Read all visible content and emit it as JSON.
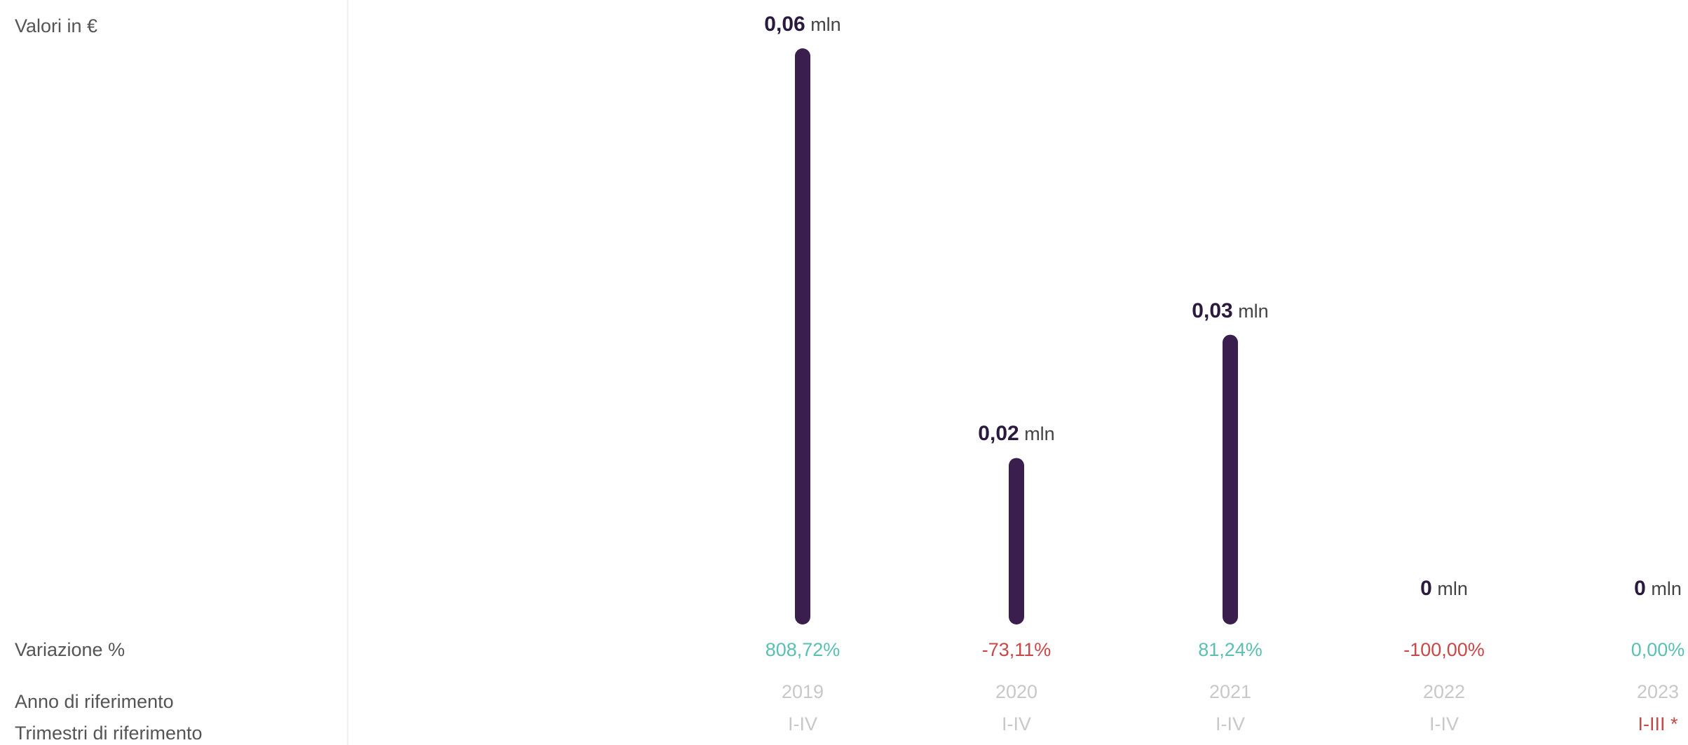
{
  "labels": {
    "values": "Valori in €",
    "variation": "Variazione %",
    "year": "Anno di riferimento",
    "quarter": "Trimestri di riferimento"
  },
  "colors": {
    "bar": "#3a1f4e",
    "positive": "#5bbfb3",
    "negative": "#c84848",
    "muted": "#c8c8c8"
  },
  "chart_data": {
    "type": "bar",
    "categories": [
      "2019",
      "2020",
      "2021",
      "2022",
      "2023"
    ],
    "values": [
      0.0605,
      0.0163,
      0.0296,
      0,
      0
    ],
    "value_labels": [
      {
        "number": "0,06",
        "unit": "mln"
      },
      {
        "number": "0,02",
        "unit": "mln"
      },
      {
        "number": "0,03",
        "unit": "mln"
      },
      {
        "number": "0",
        "unit": "mln"
      },
      {
        "number": "0",
        "unit": "mln"
      }
    ],
    "variations": [
      {
        "text": "808,72%",
        "sign": "positive"
      },
      {
        "text": "-73,11%",
        "sign": "negative"
      },
      {
        "text": "81,24%",
        "sign": "positive"
      },
      {
        "text": "-100,00%",
        "sign": "negative"
      },
      {
        "text": "0,00%",
        "sign": "positive"
      }
    ],
    "quarters": [
      {
        "text": "I-IV",
        "highlight": false
      },
      {
        "text": "I-IV",
        "highlight": false
      },
      {
        "text": "I-IV",
        "highlight": false
      },
      {
        "text": "I-IV",
        "highlight": false
      },
      {
        "text": "I-III *",
        "highlight": true
      }
    ],
    "ylim": [
      0,
      0.0605
    ],
    "grid": false,
    "legend": "none"
  }
}
